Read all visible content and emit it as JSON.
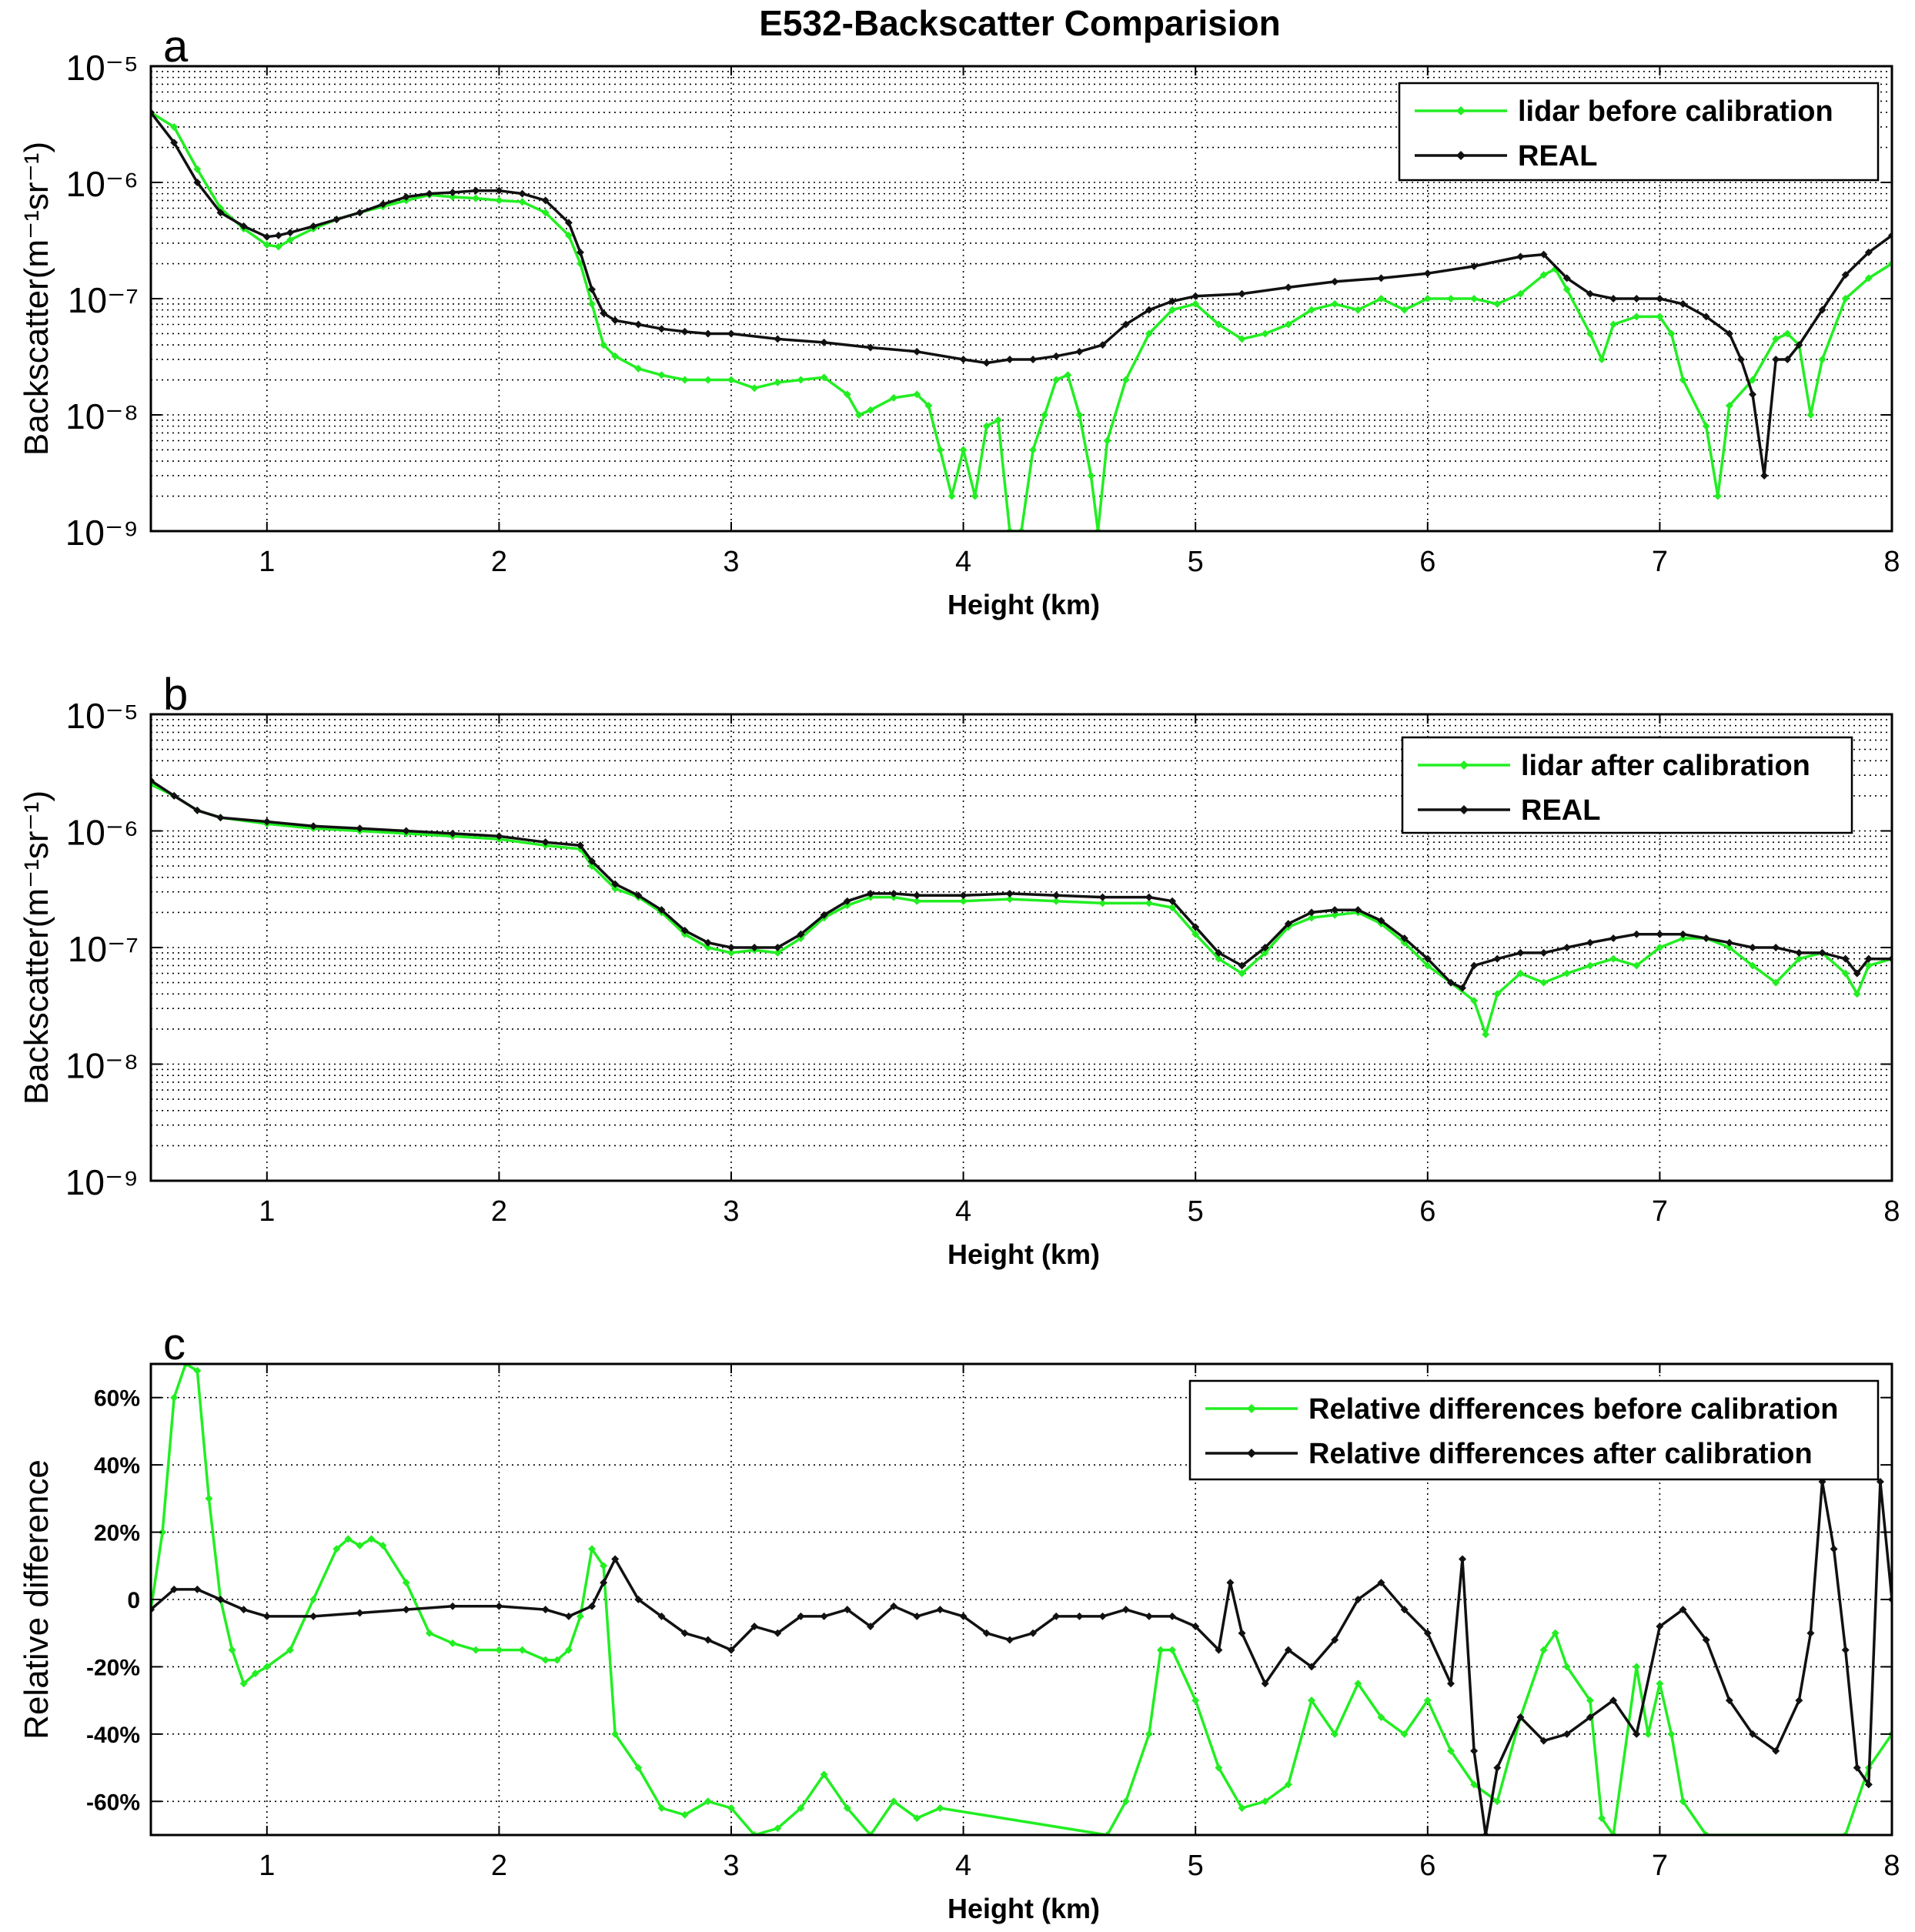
{
  "figure": {
    "title": "E532-Backscatter Comparision"
  },
  "colors": {
    "green": "#22ee22",
    "black": "#111111"
  },
  "chart_data": [
    {
      "type": "line",
      "panel_label": "a",
      "xlabel": "Height (km)",
      "ylabel": "Backscatter(m⁻¹sr⁻¹)",
      "x_ticks": [
        "1",
        "2",
        "3",
        "4",
        "5",
        "6",
        "7",
        "8"
      ],
      "y_ticks": [
        "10⁻⁹",
        "10⁻⁸",
        "10⁻⁷",
        "10⁻⁶",
        "10⁻⁵"
      ],
      "xlim": [
        0.5,
        8
      ],
      "ylim": [
        1e-09,
        1e-05
      ],
      "yscale": "log",
      "grid": true,
      "legend_position": "top-right",
      "series": [
        {
          "name": "lidar before calibration",
          "color": "#22ee22",
          "x": [
            0.5,
            0.6,
            0.7,
            0.8,
            0.9,
            1.0,
            1.05,
            1.1,
            1.2,
            1.3,
            1.4,
            1.5,
            1.6,
            1.7,
            1.8,
            1.9,
            2.0,
            2.1,
            2.2,
            2.3,
            2.35,
            2.4,
            2.45,
            2.5,
            2.6,
            2.7,
            2.8,
            2.9,
            3.0,
            3.1,
            3.2,
            3.3,
            3.4,
            3.5,
            3.55,
            3.6,
            3.7,
            3.8,
            3.85,
            3.9,
            3.95,
            4.0,
            4.05,
            4.1,
            4.15,
            4.2,
            4.25,
            4.3,
            4.35,
            4.4,
            4.45,
            4.5,
            4.55,
            4.58,
            4.62,
            4.7,
            4.8,
            4.9,
            5.0,
            5.1,
            5.2,
            5.3,
            5.4,
            5.5,
            5.6,
            5.7,
            5.8,
            5.9,
            6.0,
            6.1,
            6.2,
            6.3,
            6.4,
            6.5,
            6.55,
            6.6,
            6.7,
            6.75,
            6.8,
            6.9,
            7.0,
            7.05,
            7.1,
            7.2,
            7.25,
            7.3,
            7.4,
            7.5,
            7.55,
            7.6,
            7.65,
            7.7,
            7.8,
            7.9,
            8.0
          ],
          "y": [
            4e-06,
            3e-06,
            1.3e-06,
            6e-07,
            4e-07,
            2.9e-07,
            2.8e-07,
            3.2e-07,
            4e-07,
            4.8e-07,
            5.5e-07,
            6.2e-07,
            7e-07,
            7.8e-07,
            7.5e-07,
            7.3e-07,
            7e-07,
            6.8e-07,
            5.5e-07,
            3.5e-07,
            2e-07,
            9e-08,
            4e-08,
            3.2e-08,
            2.5e-08,
            2.2e-08,
            2e-08,
            2e-08,
            2e-08,
            1.7e-08,
            1.9e-08,
            2e-08,
            2.1e-08,
            1.5e-08,
            1e-08,
            1.1e-08,
            1.4e-08,
            1.5e-08,
            1.2e-08,
            5e-09,
            2e-09,
            5e-09,
            2e-09,
            8e-09,
            9e-09,
            1e-09,
            1e-09,
            5e-09,
            1e-08,
            2e-08,
            2.2e-08,
            1e-08,
            3e-09,
            1e-09,
            6e-09,
            2e-08,
            5e-08,
            8e-08,
            9e-08,
            6e-08,
            4.5e-08,
            5e-08,
            6e-08,
            8e-08,
            9e-08,
            8e-08,
            1e-07,
            8e-08,
            1e-07,
            1e-07,
            1e-07,
            9e-08,
            1.1e-07,
            1.6e-07,
            1.8e-07,
            1.2e-07,
            5e-08,
            3e-08,
            6e-08,
            7e-08,
            7e-08,
            5e-08,
            2e-08,
            8e-09,
            2e-09,
            1.2e-08,
            2e-08,
            4.5e-08,
            5e-08,
            4e-08,
            1e-08,
            3e-08,
            1e-07,
            1.5e-07,
            2e-07
          ]
        },
        {
          "name": "REAL",
          "color": "#111111",
          "x": [
            0.5,
            0.6,
            0.7,
            0.8,
            0.9,
            1.0,
            1.05,
            1.1,
            1.2,
            1.3,
            1.4,
            1.5,
            1.6,
            1.7,
            1.8,
            1.9,
            2.0,
            2.1,
            2.2,
            2.3,
            2.35,
            2.4,
            2.45,
            2.5,
            2.6,
            2.7,
            2.8,
            2.9,
            3.0,
            3.2,
            3.4,
            3.6,
            3.8,
            4.0,
            4.1,
            4.2,
            4.3,
            4.4,
            4.5,
            4.6,
            4.7,
            4.8,
            4.9,
            5.0,
            5.2,
            5.4,
            5.6,
            5.8,
            6.0,
            6.2,
            6.4,
            6.5,
            6.6,
            6.7,
            6.8,
            6.9,
            7.0,
            7.1,
            7.2,
            7.3,
            7.35,
            7.4,
            7.45,
            7.5,
            7.55,
            7.6,
            7.7,
            7.8,
            7.9,
            8.0
          ],
          "y": [
            4e-06,
            2.2e-06,
            1e-06,
            5.5e-07,
            4.2e-07,
            3.4e-07,
            3.5e-07,
            3.7e-07,
            4.2e-07,
            4.8e-07,
            5.5e-07,
            6.5e-07,
            7.5e-07,
            8e-07,
            8.2e-07,
            8.5e-07,
            8.5e-07,
            8e-07,
            7e-07,
            4.5e-07,
            2.5e-07,
            1.2e-07,
            7.5e-08,
            6.5e-08,
            6e-08,
            5.5e-08,
            5.2e-08,
            5e-08,
            5e-08,
            4.5e-08,
            4.2e-08,
            3.8e-08,
            3.5e-08,
            3e-08,
            2.8e-08,
            3e-08,
            3e-08,
            3.2e-08,
            3.5e-08,
            4e-08,
            6e-08,
            8e-08,
            9.5e-08,
            1.05e-07,
            1.1e-07,
            1.25e-07,
            1.4e-07,
            1.5e-07,
            1.65e-07,
            1.9e-07,
            2.3e-07,
            2.4e-07,
            1.5e-07,
            1.1e-07,
            1e-07,
            1e-07,
            1e-07,
            9e-08,
            7e-08,
            5e-08,
            3e-08,
            1.5e-08,
            3e-09,
            3e-08,
            3e-08,
            4e-08,
            8e-08,
            1.6e-07,
            2.5e-07,
            3.5e-07
          ]
        }
      ]
    },
    {
      "type": "line",
      "panel_label": "b",
      "xlabel": "Height (km)",
      "ylabel": "Backscatter(m⁻¹sr⁻¹)",
      "x_ticks": [
        "1",
        "2",
        "3",
        "4",
        "5",
        "6",
        "7",
        "8"
      ],
      "y_ticks": [
        "10⁻⁹",
        "10⁻⁸",
        "10⁻⁷",
        "10⁻⁶",
        "10⁻⁵"
      ],
      "xlim": [
        0.5,
        8
      ],
      "ylim": [
        1e-09,
        1e-05
      ],
      "yscale": "log",
      "grid": true,
      "legend_position": "top-right",
      "series": [
        {
          "name": "lidar after calibration",
          "color": "#22ee22",
          "x": [
            0.5,
            0.6,
            0.7,
            0.8,
            1.0,
            1.2,
            1.4,
            1.6,
            1.8,
            2.0,
            2.2,
            2.35,
            2.4,
            2.5,
            2.6,
            2.7,
            2.8,
            2.9,
            3.0,
            3.1,
            3.2,
            3.3,
            3.4,
            3.5,
            3.6,
            3.7,
            3.8,
            4.0,
            4.2,
            4.4,
            4.6,
            4.8,
            4.9,
            5.0,
            5.1,
            5.2,
            5.3,
            5.4,
            5.5,
            5.6,
            5.7,
            5.8,
            5.9,
            6.0,
            6.1,
            6.2,
            6.25,
            6.3,
            6.4,
            6.5,
            6.6,
            6.7,
            6.8,
            6.9,
            7.0,
            7.1,
            7.2,
            7.3,
            7.4,
            7.5,
            7.6,
            7.7,
            7.8,
            7.85,
            7.9,
            8.0
          ],
          "y": [
            2.5e-06,
            2e-06,
            1.5e-06,
            1.3e-06,
            1.15e-06,
            1.05e-06,
            1e-06,
            9.5e-07,
            9e-07,
            8.5e-07,
            7.5e-07,
            7e-07,
            5e-07,
            3.2e-07,
            2.7e-07,
            2e-07,
            1.3e-07,
            1e-07,
            9e-08,
            9.5e-08,
            9e-08,
            1.2e-07,
            1.8e-07,
            2.3e-07,
            2.7e-07,
            2.7e-07,
            2.5e-07,
            2.5e-07,
            2.6e-07,
            2.5e-07,
            2.4e-07,
            2.4e-07,
            2.2e-07,
            1.3e-07,
            8e-08,
            6e-08,
            9e-08,
            1.5e-07,
            1.8e-07,
            1.9e-07,
            2e-07,
            1.6e-07,
            1.1e-07,
            7e-08,
            5e-08,
            3.5e-08,
            1.8e-08,
            4e-08,
            6e-08,
            5e-08,
            6e-08,
            7e-08,
            8e-08,
            7e-08,
            1e-07,
            1.2e-07,
            1.2e-07,
            1e-07,
            7e-08,
            5e-08,
            8e-08,
            9e-08,
            6e-08,
            4e-08,
            7e-08,
            8e-08
          ]
        },
        {
          "name": "REAL",
          "color": "#111111",
          "x": [
            0.5,
            0.6,
            0.7,
            0.8,
            1.0,
            1.2,
            1.4,
            1.6,
            1.8,
            2.0,
            2.2,
            2.35,
            2.4,
            2.5,
            2.6,
            2.7,
            2.8,
            2.9,
            3.0,
            3.1,
            3.2,
            3.3,
            3.4,
            3.5,
            3.6,
            3.7,
            3.8,
            4.0,
            4.2,
            4.4,
            4.6,
            4.8,
            4.9,
            5.0,
            5.1,
            5.2,
            5.3,
            5.4,
            5.5,
            5.6,
            5.7,
            5.8,
            5.9,
            6.0,
            6.1,
            6.15,
            6.2,
            6.3,
            6.4,
            6.5,
            6.6,
            6.7,
            6.8,
            6.9,
            7.0,
            7.1,
            7.2,
            7.3,
            7.4,
            7.5,
            7.6,
            7.7,
            7.8,
            7.85,
            7.9,
            8.0
          ],
          "y": [
            2.7e-06,
            2e-06,
            1.5e-06,
            1.3e-06,
            1.2e-06,
            1.1e-06,
            1.05e-06,
            1e-06,
            9.5e-07,
            9e-07,
            8e-07,
            7.5e-07,
            5.5e-07,
            3.5e-07,
            2.8e-07,
            2.1e-07,
            1.4e-07,
            1.1e-07,
            1e-07,
            1e-07,
            1e-07,
            1.3e-07,
            1.9e-07,
            2.5e-07,
            2.9e-07,
            2.9e-07,
            2.8e-07,
            2.8e-07,
            2.9e-07,
            2.8e-07,
            2.7e-07,
            2.7e-07,
            2.5e-07,
            1.5e-07,
            9e-08,
            7e-08,
            1e-07,
            1.6e-07,
            2e-07,
            2.1e-07,
            2.1e-07,
            1.7e-07,
            1.2e-07,
            8e-08,
            5e-08,
            4.5e-08,
            7e-08,
            8e-08,
            9e-08,
            9e-08,
            1e-07,
            1.1e-07,
            1.2e-07,
            1.3e-07,
            1.3e-07,
            1.3e-07,
            1.2e-07,
            1.1e-07,
            1e-07,
            1e-07,
            9e-08,
            9e-08,
            8e-08,
            6e-08,
            8e-08,
            8e-08
          ]
        }
      ]
    },
    {
      "type": "line",
      "panel_label": "c",
      "xlabel": "Height (km)",
      "ylabel": "Relative difference",
      "x_ticks": [
        "1",
        "2",
        "3",
        "4",
        "5",
        "6",
        "7",
        "8"
      ],
      "y_ticks": [
        "-60%",
        "-40%",
        "-20%",
        "0",
        "20%",
        "40%",
        "60%"
      ],
      "xlim": [
        0.5,
        8
      ],
      "ylim": [
        -70,
        70
      ],
      "yscale": "linear",
      "grid": true,
      "legend_position": "top-right",
      "series": [
        {
          "name": "Relative differences before calibration",
          "color": "#22ee22",
          "x": [
            0.5,
            0.55,
            0.6,
            0.65,
            0.7,
            0.75,
            0.8,
            0.85,
            0.9,
            0.95,
            1.0,
            1.1,
            1.2,
            1.3,
            1.35,
            1.4,
            1.45,
            1.5,
            1.6,
            1.7,
            1.8,
            1.9,
            2.0,
            2.1,
            2.2,
            2.25,
            2.3,
            2.35,
            2.4,
            2.45,
            2.5,
            2.6,
            2.7,
            2.8,
            2.9,
            3.0,
            3.1,
            3.2,
            3.3,
            3.4,
            3.5,
            3.6,
            3.7,
            3.8,
            3.9,
            4.62,
            4.7,
            4.8,
            4.85,
            4.9,
            5.0,
            5.1,
            5.2,
            5.3,
            5.4,
            5.5,
            5.6,
            5.7,
            5.8,
            5.9,
            6.0,
            6.1,
            6.2,
            6.3,
            6.4,
            6.5,
            6.55,
            6.6,
            6.7,
            6.75,
            6.8,
            6.9,
            6.95,
            7.0,
            7.05,
            7.1,
            7.2,
            7.8,
            7.9,
            8.0
          ],
          "y": [
            -3,
            20,
            60,
            72,
            68,
            30,
            0,
            -15,
            -25,
            -22,
            -20,
            -15,
            0,
            15,
            18,
            16,
            18,
            16,
            5,
            -10,
            -13,
            -15,
            -15,
            -15,
            -18,
            -18,
            -15,
            -5,
            15,
            10,
            -40,
            -50,
            -62,
            -64,
            -60,
            -62,
            -70,
            -68,
            -62,
            -52,
            -62,
            -70,
            -60,
            -65,
            -62,
            -70,
            -60,
            -40,
            -15,
            -15,
            -30,
            -50,
            -62,
            -60,
            -55,
            -30,
            -40,
            -25,
            -35,
            -40,
            -30,
            -45,
            -55,
            -60,
            -35,
            -15,
            -10,
            -20,
            -30,
            -65,
            -70,
            -20,
            -40,
            -25,
            -40,
            -60,
            -70,
            -70,
            -50,
            -40
          ]
        },
        {
          "name": "Relative differences after calibration",
          "color": "#111111",
          "x": [
            0.5,
            0.6,
            0.7,
            0.8,
            0.9,
            1.0,
            1.2,
            1.4,
            1.6,
            1.8,
            2.0,
            2.2,
            2.3,
            2.4,
            2.45,
            2.5,
            2.6,
            2.7,
            2.8,
            2.9,
            3.0,
            3.1,
            3.2,
            3.3,
            3.4,
            3.5,
            3.6,
            3.7,
            3.8,
            3.9,
            4.0,
            4.1,
            4.2,
            4.3,
            4.4,
            4.5,
            4.6,
            4.7,
            4.8,
            4.9,
            5.0,
            5.1,
            5.15,
            5.2,
            5.3,
            5.4,
            5.5,
            5.6,
            5.7,
            5.8,
            5.9,
            6.0,
            6.1,
            6.15,
            6.2,
            6.25,
            6.3,
            6.4,
            6.5,
            6.6,
            6.7,
            6.8,
            6.9,
            7.0,
            7.1,
            7.2,
            7.3,
            7.4,
            7.5,
            7.6,
            7.65,
            7.7,
            7.75,
            7.8,
            7.85,
            7.9,
            7.95,
            8.0
          ],
          "y": [
            -3,
            3,
            3,
            0,
            -3,
            -5,
            -5,
            -4,
            -3,
            -2,
            -2,
            -3,
            -5,
            -2,
            5,
            12,
            0,
            -5,
            -10,
            -12,
            -15,
            -8,
            -10,
            -5,
            -5,
            -3,
            -8,
            -2,
            -5,
            -3,
            -5,
            -10,
            -12,
            -10,
            -5,
            -5,
            -5,
            -3,
            -5,
            -5,
            -8,
            -15,
            5,
            -10,
            -25,
            -15,
            -20,
            -12,
            0,
            5,
            -3,
            -10,
            -25,
            12,
            -45,
            -70,
            -50,
            -35,
            -42,
            -40,
            -35,
            -30,
            -40,
            -8,
            -3,
            -12,
            -30,
            -40,
            -45,
            -30,
            -10,
            35,
            15,
            -15,
            -50,
            -55,
            35,
            0
          ]
        }
      ]
    }
  ]
}
